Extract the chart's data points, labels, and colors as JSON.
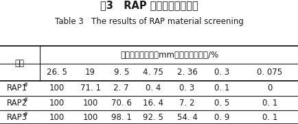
{
  "title_zh": "表3   RAP 材料筛分试验结果",
  "title_en": "Table 3   The results of RAP material screening",
  "header_merged": "通过下列方孔筛（mm）的质量百分率/%",
  "col_header_0": "规格",
  "col_headers": [
    "26. 5",
    "19",
    "9. 5",
    "4. 75",
    "2. 36",
    "0. 3",
    "0. 075"
  ],
  "rows": [
    [
      "RAP1",
      "#",
      "100",
      "71. 1",
      "2. 7",
      "0. 4",
      "0. 3",
      "0. 1",
      "0"
    ],
    [
      "RAP2",
      "#",
      "100",
      "100",
      "70. 6",
      "16. 4",
      "7. 2",
      "0. 5",
      "0. 1"
    ],
    [
      "RAP3",
      "#",
      "100",
      "100",
      "98. 1",
      "92. 5",
      "54. 4",
      "0. 9",
      "0. 1"
    ]
  ],
  "title_zh_fontsize": 10.5,
  "title_en_fontsize": 8.5,
  "header_fontsize": 8.5,
  "cell_fontsize": 8.5,
  "title_zh_color": "#1a1a1a",
  "title_en_color": "#1a1a1a",
  "header_color": "#1a1a1a",
  "cell_color": "#1a1a1a",
  "line_color": "#1a1a1a",
  "bg_color": "#ffffff",
  "text_color_blue": "#1a5ca8"
}
